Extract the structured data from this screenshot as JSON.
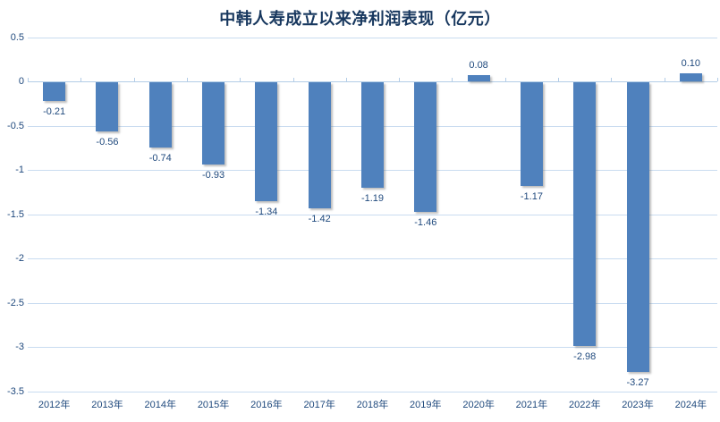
{
  "chart_data": {
    "type": "bar",
    "title": "中韩人寿成立以来净利润表现（亿元）",
    "xlabel": "",
    "ylabel": "",
    "categories": [
      "2012年",
      "2013年",
      "2014年",
      "2015年",
      "2016年",
      "2017年",
      "2018年",
      "2019年",
      "2020年",
      "2021年",
      "2022年",
      "2023年",
      "2024年"
    ],
    "values": [
      -0.21,
      -0.56,
      -0.74,
      -0.93,
      -1.34,
      -1.42,
      -1.19,
      -1.46,
      0.08,
      -1.17,
      -2.98,
      -3.27,
      0.1
    ],
    "value_labels": [
      "-0.21",
      "-0.56",
      "-0.74",
      "-0.93",
      "-1.34",
      "-1.42",
      "-1.19",
      "-1.46",
      "0.08",
      "-1.17",
      "-2.98",
      "-3.27",
      "0.10"
    ],
    "yticks": [
      0.5,
      0,
      -0.5,
      -1,
      -1.5,
      -2,
      -2.5,
      -3,
      -3.5
    ],
    "ytick_labels": [
      "0.5",
      "0",
      "-0.5",
      "-1",
      "-1.5",
      "-2",
      "-2.5",
      "-3",
      "-3.5"
    ],
    "ylim": [
      -3.5,
      0.5
    ],
    "grid": true,
    "legend": false,
    "data_labels": true
  },
  "colors": {
    "bar": "#4F81BD",
    "title": "#17375E",
    "tick_label": "#1F497D",
    "data_label": "#1F497D",
    "gridline": "#C9DCF0",
    "axis": "#B3CCE6"
  }
}
